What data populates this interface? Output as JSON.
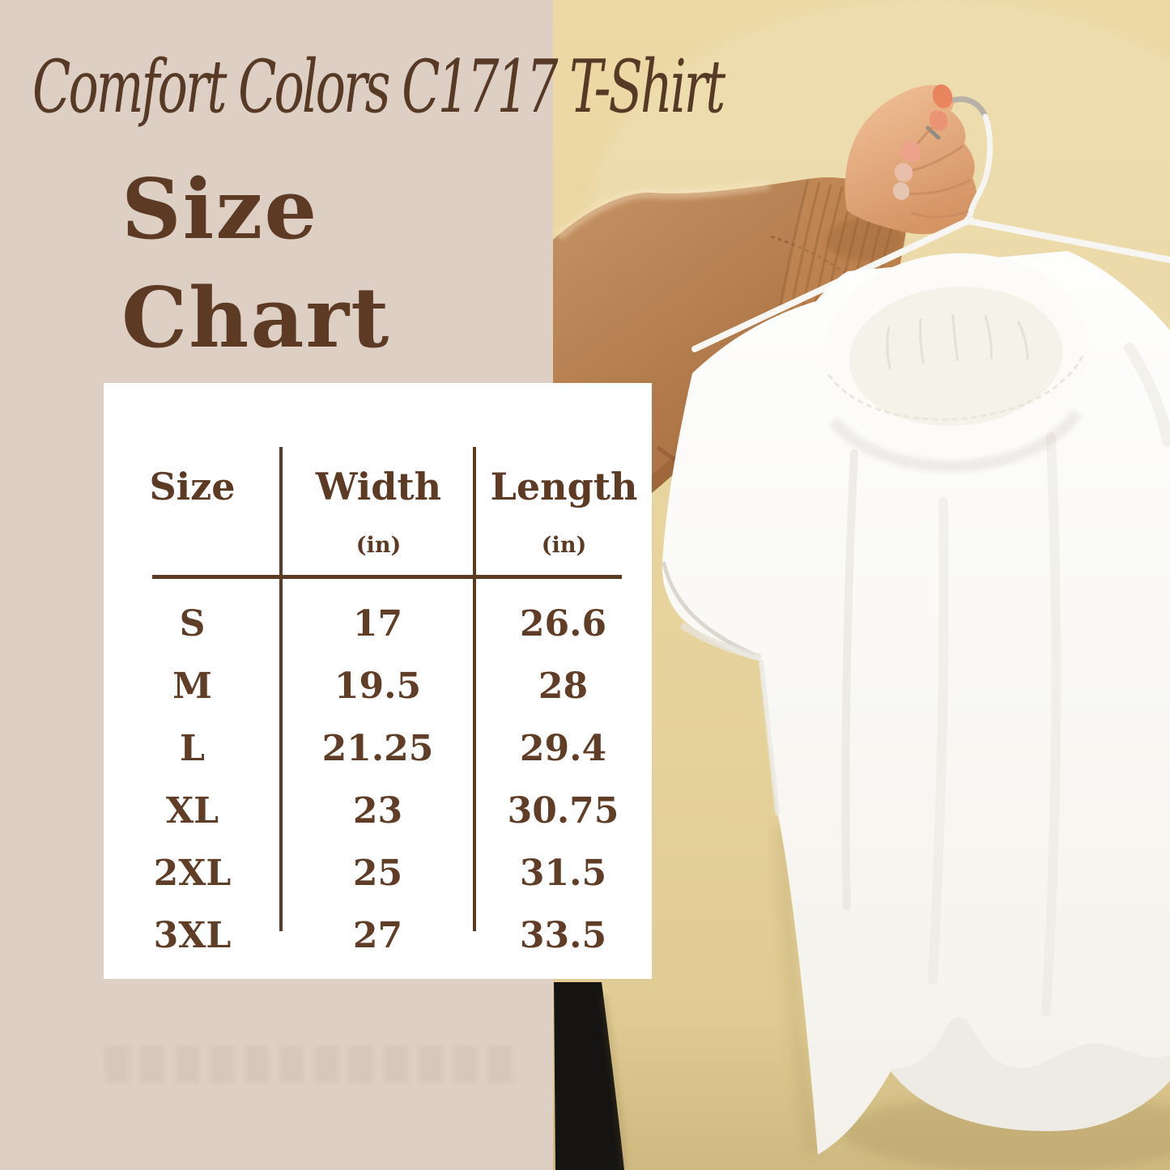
{
  "title_block": {
    "script_title": "Comfort Colors C1717 T-Shirt",
    "heading_line1": "Size",
    "heading_line2": "Chart"
  },
  "colors": {
    "left_panel_bg": "#ddcfc4",
    "photo_wall_top": "#ecd9a6",
    "photo_wall_bottom": "#dcc88f",
    "text_brown": "#5d3a23",
    "card_bg": "#ffffff",
    "sweater_brown": "#b57a45",
    "pants_black": "#161412",
    "shirt_white": "#fbfaf7"
  },
  "chart_data": {
    "type": "table",
    "title": "Comfort Colors C1717 T-Shirt Size Chart",
    "columns": [
      {
        "label": "Size",
        "unit": ""
      },
      {
        "label": "Width",
        "unit": "(in)"
      },
      {
        "label": "Length",
        "unit": "(in)"
      }
    ],
    "rows": [
      {
        "size": "S",
        "width": "17",
        "length": "26.6"
      },
      {
        "size": "M",
        "width": "19.5",
        "length": "28"
      },
      {
        "size": "L",
        "width": "21.25",
        "length": "29.4"
      },
      {
        "size": "XL",
        "width": "23",
        "length": "30.75"
      },
      {
        "size": "2XL",
        "width": "25",
        "length": "31.5"
      },
      {
        "size": "3XL",
        "width": "27",
        "length": "33.5"
      }
    ]
  }
}
